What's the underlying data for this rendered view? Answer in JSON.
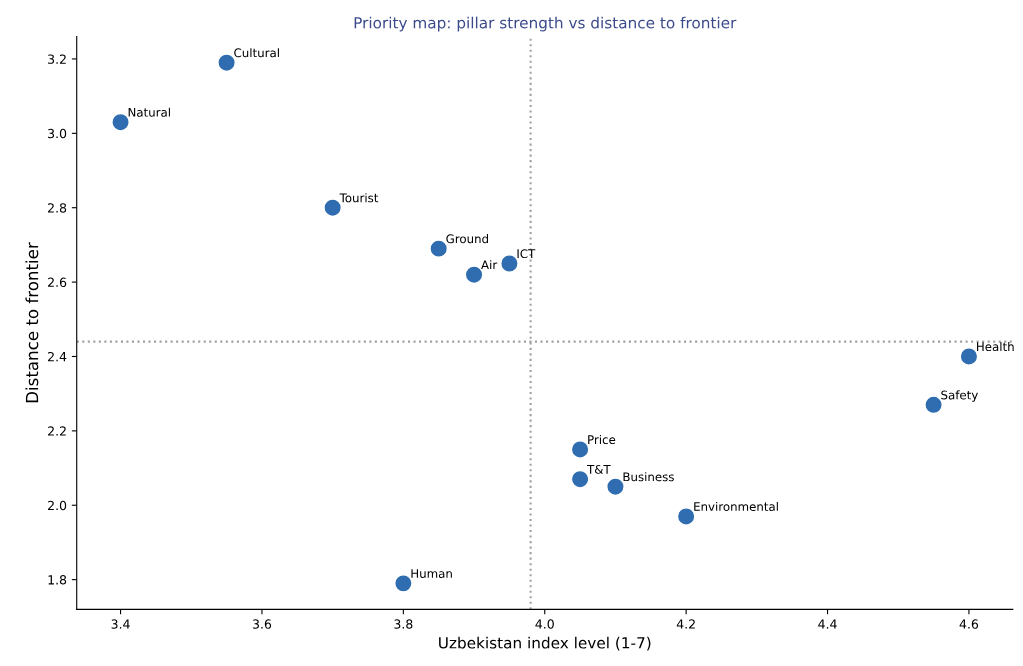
{
  "chart_data": {
    "type": "scatter",
    "title": "Priority map: pillar strength vs distance to frontier",
    "xlabel": "Uzbekistan index level (1-7)",
    "ylabel": "Distance to frontier",
    "x": [
      3.55,
      3.4,
      3.7,
      3.85,
      3.9,
      3.95,
      4.6,
      4.55,
      4.05,
      4.05,
      4.1,
      4.2,
      3.8
    ],
    "series": [
      {
        "color": "#2f6db0",
        "values": [
          3.19,
          3.03,
          2.8,
          2.69,
          2.62,
          2.65,
          2.4,
          2.27,
          2.15,
          2.07,
          2.05,
          1.97,
          1.79
        ]
      }
    ],
    "annotations": [
      {
        "text": "Cultural",
        "x": 3.55,
        "y": 3.19
      },
      {
        "text": "Natural",
        "x": 3.4,
        "y": 3.03
      },
      {
        "text": "Tourist",
        "x": 3.7,
        "y": 2.8
      },
      {
        "text": "Ground",
        "x": 3.85,
        "y": 2.69
      },
      {
        "text": "Air",
        "x": 3.9,
        "y": 2.62
      },
      {
        "text": "ICT",
        "x": 3.95,
        "y": 2.65
      },
      {
        "text": "Health",
        "x": 4.6,
        "y": 2.4
      },
      {
        "text": "Safety",
        "x": 4.55,
        "y": 2.27
      },
      {
        "text": "Price",
        "x": 4.05,
        "y": 2.15
      },
      {
        "text": "T&T",
        "x": 4.05,
        "y": 2.07
      },
      {
        "text": "Business",
        "x": 4.1,
        "y": 2.05
      },
      {
        "text": "Environmental",
        "x": 4.2,
        "y": 1.97
      },
      {
        "text": "Human",
        "x": 3.8,
        "y": 1.79
      }
    ],
    "ref_lines": [
      {
        "axis": "x",
        "value": 3.98,
        "color": "#a0a0a0",
        "line_style": "dotted"
      },
      {
        "axis": "y",
        "value": 2.44,
        "color": "#a0a0a0",
        "line_style": "dotted"
      }
    ],
    "xlim": [
      3.338,
      4.662
    ],
    "ylim": [
      1.72,
      3.26
    ],
    "xticks": [
      {
        "value": 3.4,
        "label": "3.4"
      },
      {
        "value": 3.6,
        "label": "3.6"
      },
      {
        "value": 3.8,
        "label": "3.8"
      },
      {
        "value": 4.0,
        "label": "4.0"
      },
      {
        "value": 4.2,
        "label": "4.2"
      },
      {
        "value": 4.4,
        "label": "4.4"
      },
      {
        "value": 4.6,
        "label": "4.6"
      }
    ],
    "yticks": [
      {
        "value": 1.8,
        "label": "1.8"
      },
      {
        "value": 2.0,
        "label": "2.0"
      },
      {
        "value": 2.2,
        "label": "2.2"
      },
      {
        "value": 2.4,
        "label": "2.4"
      },
      {
        "value": 2.6,
        "label": "2.6"
      },
      {
        "value": 2.8,
        "label": "2.8"
      },
      {
        "value": 3.0,
        "label": "3.0"
      },
      {
        "value": 3.2,
        "label": "3.2"
      }
    ],
    "marker": "circle",
    "grid": false,
    "legend": false
  }
}
